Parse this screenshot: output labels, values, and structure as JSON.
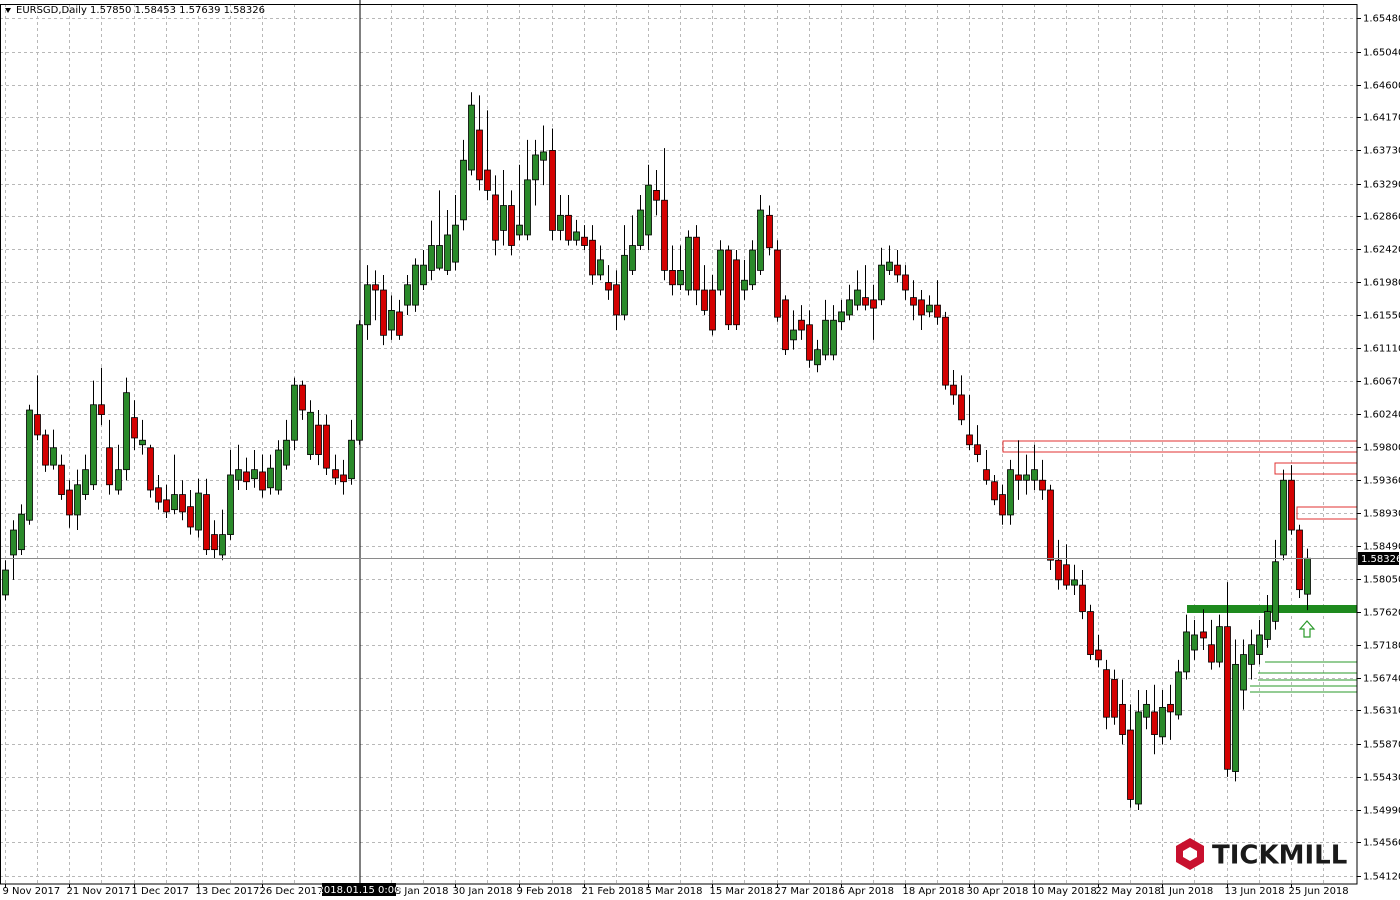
{
  "chart_data": {
    "type": "candlestick",
    "title": "EURSGD,Daily  1.57850 1.58453 1.57639 1.58326",
    "crosshair_label": "2018.01.15 0:00",
    "brand": "TICKMILL",
    "price_line": {
      "value": 1.58326,
      "label": "1.58326"
    },
    "up_color": "#2a8a2a",
    "down_color": "#d40000",
    "grid": true,
    "ylim": [
      1.5401,
      1.6567
    ],
    "yticks": [
      {
        "value": 1.6548,
        "label": "1.65480"
      },
      {
        "value": 1.6504,
        "label": "1.65040"
      },
      {
        "value": 1.646,
        "label": "1.64600"
      },
      {
        "value": 1.6417,
        "label": "1.64170"
      },
      {
        "value": 1.6373,
        "label": "1.63730"
      },
      {
        "value": 1.6329,
        "label": "1.63290"
      },
      {
        "value": 1.6286,
        "label": "1.62860"
      },
      {
        "value": 1.6242,
        "label": "1.62420"
      },
      {
        "value": 1.6198,
        "label": "1.61980"
      },
      {
        "value": 1.6155,
        "label": "1.61550"
      },
      {
        "value": 1.6111,
        "label": "1.61110"
      },
      {
        "value": 1.6067,
        "label": "1.60670"
      },
      {
        "value": 1.6024,
        "label": "1.60240"
      },
      {
        "value": 1.598,
        "label": "1.59800"
      },
      {
        "value": 1.5936,
        "label": "1.59360"
      },
      {
        "value": 1.5893,
        "label": "1.58930"
      },
      {
        "value": 1.5849,
        "label": "1.58490"
      },
      {
        "value": 1.5805,
        "label": "1.58050"
      },
      {
        "value": 1.5762,
        "label": "1.57620"
      },
      {
        "value": 1.5718,
        "label": "1.57180"
      },
      {
        "value": 1.5674,
        "label": "1.56740"
      },
      {
        "value": 1.5631,
        "label": "1.56310"
      },
      {
        "value": 1.5587,
        "label": "1.55870"
      },
      {
        "value": 1.5543,
        "label": "1.55430"
      },
      {
        "value": 1.5499,
        "label": "1.54990"
      },
      {
        "value": 1.5456,
        "label": "1.54560"
      },
      {
        "value": 1.5412,
        "label": "1.54120"
      }
    ],
    "x": [
      "9 Nov 2017",
      null,
      null,
      null,
      null,
      null,
      null,
      null,
      "21 Nov 2017",
      null,
      null,
      null,
      null,
      null,
      null,
      null,
      "1 Dec 2017",
      null,
      null,
      null,
      null,
      null,
      null,
      null,
      "13 Dec 2017",
      null,
      null,
      null,
      null,
      null,
      null,
      null,
      "26 Dec 2017",
      null,
      null,
      null,
      null,
      null,
      null,
      null,
      null,
      null,
      null,
      null,
      null,
      null,
      null,
      null,
      "18 Jan 2018",
      null,
      null,
      null,
      null,
      null,
      null,
      null,
      "30 Jan 2018",
      null,
      null,
      null,
      null,
      null,
      null,
      null,
      "9 Feb 2018",
      null,
      null,
      null,
      null,
      null,
      null,
      null,
      "21 Feb 2018",
      null,
      null,
      null,
      null,
      null,
      null,
      null,
      "5 Mar 2018",
      null,
      null,
      null,
      null,
      null,
      null,
      null,
      "15 Mar 2018",
      null,
      null,
      null,
      null,
      null,
      null,
      null,
      "27 Mar 2018",
      null,
      null,
      null,
      null,
      null,
      null,
      null,
      "6 Apr 2018",
      null,
      null,
      null,
      null,
      null,
      null,
      null,
      "18 Apr 2018",
      null,
      null,
      null,
      null,
      null,
      null,
      null,
      "30 Apr 2018",
      null,
      null,
      null,
      null,
      null,
      null,
      null,
      "10 May 2018",
      null,
      null,
      null,
      null,
      null,
      null,
      null,
      "22 May 2018",
      null,
      null,
      null,
      null,
      null,
      null,
      null,
      "1 Jun 2018",
      null,
      null,
      null,
      null,
      null,
      null,
      null,
      "13 Jun 2018",
      null,
      null,
      null,
      null,
      null,
      null,
      null,
      "25 Jun 2018",
      null,
      null
    ],
    "open": [
      1.5784,
      1.5837,
      1.5844,
      1.5883,
      1.6023,
      1.5996,
      1.5956,
      1.5956,
      1.5923,
      1.589,
      1.5917,
      1.593,
      1.6036,
      1.5979,
      1.5923,
      1.595,
      1.6019,
      1.5983,
      1.5979,
      1.5926,
      1.591,
      1.5897,
      1.5917,
      1.5901,
      1.587,
      1.5917,
      1.5864,
      1.5837,
      1.5864,
      1.5936,
      1.5947,
      1.5938,
      1.5947,
      1.5926,
      1.5923,
      1.5956,
      1.5989,
      1.6062,
      1.597,
      1.6009,
      1.6009,
      1.595,
      1.5943,
      1.5938,
      1.5989,
      1.6142,
      1.6195,
      1.6188,
      1.6135,
      1.6159,
      1.6168,
      1.6168,
      1.6195,
      1.6214,
      1.6217,
      1.6214,
      1.6225,
      1.6281,
      1.6347,
      1.64,
      1.6347,
      1.6314,
      1.6267,
      1.63,
      1.6261,
      1.6261,
      1.6334,
      1.636,
      1.6373,
      1.6267,
      1.6287,
      1.6254,
      1.6258,
      1.6254,
      1.6208,
      1.6198,
      1.6195,
      1.6155,
      1.6214,
      1.6247,
      1.6261,
      1.632,
      1.6307,
      1.6214,
      1.6195,
      1.6188,
      1.6258,
      1.6188,
      1.6188,
      1.6188,
      1.6241,
      1.6228,
      1.6188,
      1.6195,
      1.6214,
      1.6287,
      1.6241,
      1.6175,
      1.6122,
      1.6148,
      1.6142,
      1.6089,
      1.6102,
      1.6102,
      1.6146,
      1.6155,
      1.6168,
      1.6178,
      1.6175,
      1.6175,
      1.6214,
      1.6221,
      1.6208,
      1.6178,
      1.6175,
      1.6159,
      1.6168,
      1.6152,
      1.6062,
      1.6049,
      1.5996,
      1.5983,
      1.595,
      1.5934,
      1.5917,
      1.589,
      1.5943,
      1.5936,
      1.5936,
      1.5936,
      1.5923,
      1.583,
      1.5824,
      1.5797,
      1.5797,
      1.5762,
      1.5711,
      1.5685,
      1.5672,
      1.5639,
      1.5605,
      1.5507,
      1.5622,
      1.5629,
      1.5596,
      1.5639,
      1.5625,
      1.5682,
      1.5711,
      1.5735,
      1.5718,
      1.5695,
      1.5742,
      1.555,
      1.5658,
      1.5692,
      1.5705,
      1.5725,
      1.5749,
      1.5837,
      1.5936,
      1.587,
      1.5785
    ],
    "high": [
      1.583,
      1.5883,
      1.5904,
      1.6036,
      1.6075,
      1.6003,
      1.6003,
      1.597,
      1.5936,
      1.595,
      1.597,
      1.6068,
      1.6085,
      1.6016,
      1.5983,
      1.6072,
      1.6042,
      1.6016,
      1.5983,
      1.5943,
      1.593,
      1.597,
      1.5936,
      1.5923,
      1.5938,
      1.5938,
      1.5883,
      1.5897,
      1.5976,
      1.5983,
      1.5966,
      1.5976,
      1.597,
      1.597,
      1.5989,
      1.6016,
      1.6072,
      1.6068,
      1.6042,
      1.6029,
      1.6023,
      1.597,
      1.5963,
      1.6016,
      1.6148,
      1.6221,
      1.6214,
      1.6208,
      1.6181,
      1.6175,
      1.6208,
      1.623,
      1.6241,
      1.628,
      1.632,
      1.6294,
      1.6314,
      1.6387,
      1.645,
      1.6446,
      1.6426,
      1.634,
      1.6347,
      1.632,
      1.6354,
      1.6387,
      1.6387,
      1.6406,
      1.6402,
      1.6314,
      1.6314,
      1.6281,
      1.6274,
      1.6274,
      1.6247,
      1.6221,
      1.6214,
      1.6274,
      1.6287,
      1.6314,
      1.6354,
      1.6347,
      1.6376,
      1.6247,
      1.6247,
      1.6267,
      1.6274,
      1.6221,
      1.6208,
      1.6254,
      1.6247,
      1.6241,
      1.6228,
      1.6254,
      1.6314,
      1.63,
      1.6254,
      1.6181,
      1.6161,
      1.6168,
      1.6161,
      1.6122,
      1.6175,
      1.6168,
      1.6175,
      1.6195,
      1.6214,
      1.6221,
      1.6195,
      1.6244,
      1.6247,
      1.6241,
      1.6221,
      1.6201,
      1.6188,
      1.6181,
      1.6201,
      1.6159,
      1.6082,
      1.6075,
      1.6049,
      1.6009,
      1.5976,
      1.5943,
      1.593,
      1.5963,
      1.5989,
      1.597,
      1.5983,
      1.5963,
      1.593,
      1.5857,
      1.5851,
      1.5824,
      1.5817,
      1.5771,
      1.5731,
      1.5698,
      1.5685,
      1.5672,
      1.5639,
      1.5658,
      1.5658,
      1.5665,
      1.5658,
      1.5665,
      1.5698,
      1.5758,
      1.5751,
      1.5765,
      1.5751,
      1.5758,
      1.5801,
      1.5725,
      1.5725,
      1.5738,
      1.5751,
      1.5784,
      1.5857,
      1.595,
      1.5956,
      1.5877,
      1.58453
    ],
    "low": [
      1.5777,
      1.5804,
      1.5837,
      1.5877,
      1.5989,
      1.5947,
      1.595,
      1.591,
      1.5873,
      1.587,
      1.591,
      1.5923,
      1.6009,
      1.5917,
      1.5917,
      1.5936,
      1.5976,
      1.597,
      1.5913,
      1.5897,
      1.5886,
      1.5891,
      1.5883,
      1.5864,
      1.586,
      1.5837,
      1.5833,
      1.583,
      1.5857,
      1.5923,
      1.5923,
      1.5926,
      1.5913,
      1.5917,
      1.5917,
      1.595,
      1.5976,
      1.6016,
      1.5963,
      1.5956,
      1.5943,
      1.593,
      1.5917,
      1.593,
      1.5983,
      1.6122,
      1.6148,
      1.6115,
      1.6122,
      1.6122,
      1.6155,
      1.6159,
      1.6188,
      1.6201,
      1.6214,
      1.6208,
      1.6214,
      1.6267,
      1.634,
      1.632,
      1.6307,
      1.6234,
      1.6247,
      1.6234,
      1.6254,
      1.6254,
      1.63,
      1.6327,
      1.6254,
      1.6254,
      1.6247,
      1.6247,
      1.6241,
      1.6195,
      1.6201,
      1.6175,
      1.6135,
      1.6148,
      1.6208,
      1.6241,
      1.6241,
      1.6287,
      1.6201,
      1.6181,
      1.6188,
      1.6181,
      1.6168,
      1.6155,
      1.6128,
      1.6181,
      1.6135,
      1.6135,
      1.6175,
      1.6188,
      1.6208,
      1.6234,
      1.6146,
      1.6102,
      1.6109,
      1.6122,
      1.6085,
      1.6079,
      1.6095,
      1.6095,
      1.6135,
      1.6148,
      1.6161,
      1.6161,
      1.6122,
      1.6168,
      1.6208,
      1.6198,
      1.6175,
      1.6148,
      1.6135,
      1.6152,
      1.6142,
      1.6056,
      1.6036,
      1.6009,
      1.5976,
      1.596,
      1.593,
      1.5903,
      1.5877,
      1.5877,
      1.591,
      1.5917,
      1.5923,
      1.591,
      1.5817,
      1.5791,
      1.5791,
      1.5784,
      1.5752,
      1.5698,
      1.5688,
      1.5606,
      1.5612,
      1.5586,
      1.5502,
      1.5499,
      1.5606,
      1.5573,
      1.5586,
      1.5592,
      1.5619,
      1.5672,
      1.5698,
      1.5711,
      1.5685,
      1.5688,
      1.5543,
      1.5537,
      1.5632,
      1.5672,
      1.5692,
      1.5714,
      1.5738,
      1.583,
      1.5864,
      1.578,
      1.57639
    ],
    "close": [
      1.5817,
      1.587,
      1.5891,
      1.6029,
      1.5996,
      1.5956,
      1.5979,
      1.5917,
      1.589,
      1.593,
      1.595,
      1.6036,
      1.6023,
      1.593,
      1.595,
      1.6052,
      1.5992,
      1.5989,
      1.5923,
      1.5907,
      1.5894,
      1.5917,
      1.5894,
      1.5874,
      1.5919,
      1.5844,
      1.5844,
      1.5864,
      1.5943,
      1.595,
      1.5934,
      1.595,
      1.5923,
      1.5952,
      1.5976,
      1.5989,
      1.6062,
      1.6029,
      1.6026,
      1.597,
      1.5952,
      1.5939,
      1.5934,
      1.5989,
      1.6142,
      1.6195,
      1.6188,
      1.6128,
      1.6161,
      1.6128,
      1.6195,
      1.6221,
      1.6221,
      1.6247,
      1.6247,
      1.6261,
      1.6274,
      1.636,
      1.6433,
      1.6334,
      1.632,
      1.6254,
      1.63,
      1.6247,
      1.6274,
      1.6334,
      1.6367,
      1.6371,
      1.6267,
      1.6287,
      1.6254,
      1.6265,
      1.6247,
      1.6208,
      1.6228,
      1.6188,
      1.6155,
      1.6234,
      1.6247,
      1.6294,
      1.6327,
      1.6307,
      1.6214,
      1.6195,
      1.6214,
      1.6258,
      1.6188,
      1.6161,
      1.6135,
      1.6241,
      1.6142,
      1.6142,
      1.6201,
      1.6241,
      1.6294,
      1.6244,
      1.6152,
      1.6109,
      1.6135,
      1.6135,
      1.6095,
      1.6109,
      1.6148,
      1.6148,
      1.6159,
      1.6175,
      1.6188,
      1.6168,
      1.6164,
      1.6221,
      1.6225,
      1.6208,
      1.6188,
      1.6168,
      1.6155,
      1.6168,
      1.6152,
      1.6062,
      1.6049,
      1.6016,
      1.5983,
      1.597,
      1.5936,
      1.591,
      1.589,
      1.595,
      1.5936,
      1.5943,
      1.595,
      1.5923,
      1.583,
      1.5804,
      1.5797,
      1.5804,
      1.5762,
      1.5705,
      1.5698,
      1.5622,
      1.5622,
      1.5599,
      1.5513,
      1.5629,
      1.5639,
      1.5599,
      1.5635,
      1.5629,
      1.5682,
      1.5735,
      1.5731,
      1.5727,
      1.5695,
      1.5742,
      1.5553,
      1.5692,
      1.5705,
      1.5718,
      1.5731,
      1.5762,
      1.5828,
      1.5936,
      1.587,
      1.5791,
      1.58326
    ]
  }
}
